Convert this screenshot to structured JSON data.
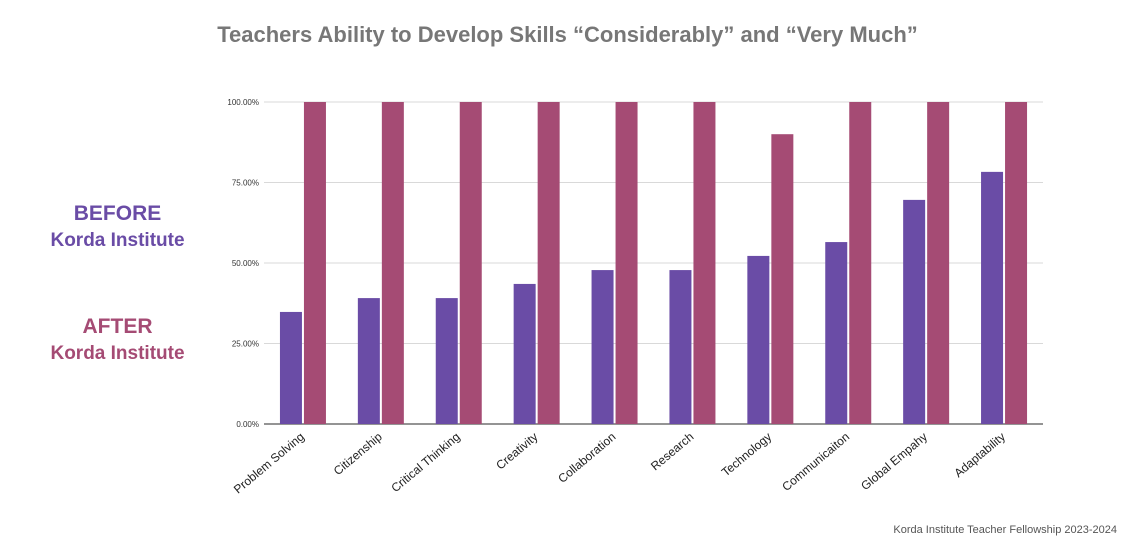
{
  "title": "Teachers Ability to Develop Skills “Considerably” and “Very Much”",
  "legend": {
    "before": {
      "line1": "BEFORE",
      "line2": "Korda Institute",
      "color": "#6a4ca6"
    },
    "after": {
      "line1": "AFTER",
      "line2": "Korda Institute",
      "color": "#a54b74"
    }
  },
  "footer": "Korda Institute Teacher Fellowship 2023-2024",
  "chart_data": {
    "type": "bar",
    "title": "Teachers Ability to Develop Skills “Considerably” and “Very Much”",
    "xlabel": "",
    "ylabel": "",
    "ylim": [
      0,
      100
    ],
    "yticks": [
      "0.00%",
      "25.00%",
      "50.00%",
      "75.00%",
      "100.00%"
    ],
    "grid": true,
    "categories": [
      "Problem Solving",
      "Citizenship",
      "Critical Thinking",
      "Creativity",
      "Collaboration",
      "Research",
      "Technology",
      "Communicaiton",
      "Global Empahy",
      "Adaptability"
    ],
    "series": [
      {
        "name": "BEFORE Korda Institute",
        "color": "#6a4ca6",
        "values": [
          34.8,
          39.1,
          39.1,
          43.5,
          47.8,
          47.8,
          52.2,
          56.5,
          69.6,
          78.3
        ]
      },
      {
        "name": "AFTER Korda Institute",
        "color": "#a54b74",
        "values": [
          100,
          100,
          100,
          100,
          100,
          100,
          90,
          100,
          100,
          100
        ]
      }
    ]
  }
}
